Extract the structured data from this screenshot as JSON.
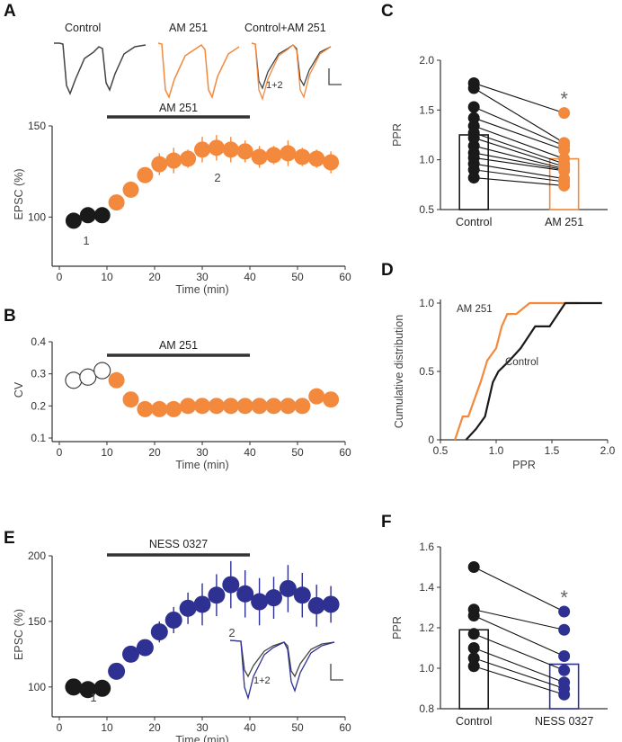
{
  "colors": {
    "black": "#1a1a1a",
    "orange": "#f3893d",
    "blue": "#2f3192",
    "gray": "#333333"
  },
  "panel_letters": {
    "a": "A",
    "b": "B",
    "c": "C",
    "d": "D",
    "e": "E",
    "f": "F"
  },
  "trace_labels": {
    "a_control": "Control",
    "a_drug": "AM 251",
    "a_overlay": "Control+AM 251",
    "overlay_tag": "1+2",
    "e_overlay_tag": "1+2"
  },
  "chart_data": [
    {
      "id": "A",
      "type": "scatter",
      "title": "",
      "xlabel": "Time (min)",
      "ylabel": "EPSC (%)",
      "xlim": [
        0,
        60
      ],
      "ylim": [
        75,
        150
      ],
      "xticks": [
        0,
        10,
        20,
        30,
        40,
        50,
        60
      ],
      "yticks": [
        100,
        150
      ],
      "bar_label": "AM 251",
      "bar_range": [
        10,
        40
      ],
      "point_labels": [
        "1",
        "2"
      ],
      "series": [
        {
          "name": "Control",
          "color": "#1a1a1a",
          "x": [
            3,
            6,
            9
          ],
          "y": [
            98,
            101,
            101
          ],
          "err": [
            0,
            0,
            0
          ]
        },
        {
          "name": "AM 251",
          "color": "#f3893d",
          "x": [
            12,
            15,
            18,
            21,
            24,
            27,
            30,
            33,
            36,
            39,
            42,
            45,
            48,
            51,
            54,
            57
          ],
          "y": [
            108,
            115,
            123,
            129,
            131,
            132,
            137,
            138,
            137,
            136,
            133,
            134,
            135,
            133,
            132,
            130
          ],
          "err": [
            2,
            3,
            3,
            6,
            7,
            5,
            7,
            7,
            7,
            6,
            6,
            5,
            7,
            5,
            5,
            6
          ]
        }
      ]
    },
    {
      "id": "B",
      "type": "scatter",
      "xlabel": "Time (min)",
      "ylabel": "CV",
      "xlim": [
        0,
        60
      ],
      "ylim": [
        0.1,
        0.4
      ],
      "xticks": [
        0,
        10,
        20,
        30,
        40,
        50,
        60
      ],
      "yticks": [
        0.1,
        0.2,
        0.3,
        0.4
      ],
      "bar_label": "AM 251",
      "bar_range": [
        10,
        40
      ],
      "series": [
        {
          "name": "Control",
          "color": "#1a1a1a",
          "hollow": true,
          "x": [
            3,
            6,
            9
          ],
          "y": [
            0.28,
            0.29,
            0.31
          ]
        },
        {
          "name": "AM 251",
          "color": "#f3893d",
          "x": [
            12,
            15,
            18,
            21,
            24,
            27,
            30,
            33,
            36,
            39,
            42,
            45,
            48,
            51,
            54,
            57
          ],
          "y": [
            0.28,
            0.22,
            0.19,
            0.19,
            0.19,
            0.2,
            0.2,
            0.2,
            0.2,
            0.2,
            0.2,
            0.2,
            0.2,
            0.2,
            0.23,
            0.22
          ]
        }
      ]
    },
    {
      "id": "C",
      "type": "bar",
      "xlabel": "",
      "ylabel": "PPR",
      "ylim": [
        0.5,
        2.0
      ],
      "yticks": [
        0.5,
        1.0,
        1.5,
        2.0
      ],
      "categories": [
        "Control",
        "AM 251"
      ],
      "values": [
        1.25,
        1.01
      ],
      "bar_colors": [
        "#1a1a1a",
        "#f3893d"
      ],
      "significance": "*",
      "pairs": [
        [
          1.77,
          1.47
        ],
        [
          1.72,
          1.17
        ],
        [
          1.53,
          1.14
        ],
        [
          1.42,
          1.1
        ],
        [
          1.34,
          1.01
        ],
        [
          1.27,
          0.96
        ],
        [
          1.22,
          0.93
        ],
        [
          1.14,
          0.91
        ],
        [
          1.07,
          0.9
        ],
        [
          1.02,
          0.89
        ],
        [
          0.96,
          0.81
        ],
        [
          0.9,
          0.78
        ],
        [
          0.82,
          0.74
        ]
      ]
    },
    {
      "id": "D",
      "type": "line",
      "xlabel": "PPR",
      "ylabel": "Cumulative distribution",
      "xlim": [
        0.5,
        2.0
      ],
      "ylim": [
        0,
        1.0
      ],
      "xticks": [
        0.5,
        1.0,
        1.5,
        2.0
      ],
      "yticks": [
        0,
        0.5,
        1.0
      ],
      "series": [
        {
          "name": "AM 251",
          "color": "#f3893d",
          "x": [
            0.63,
            0.7,
            0.75,
            0.82,
            0.86,
            0.92,
            1.0,
            1.05,
            1.1,
            1.18,
            1.3,
            1.42,
            1.55,
            1.7,
            1.75
          ],
          "y": [
            0,
            0.17,
            0.17,
            0.33,
            0.42,
            0.58,
            0.67,
            0.83,
            0.92,
            0.92,
            1.0,
            1.0,
            1.0,
            1.0,
            1.0
          ]
        },
        {
          "name": "Control",
          "color": "#1a1a1a",
          "x": [
            0.73,
            0.82,
            0.9,
            0.97,
            1.02,
            1.12,
            1.22,
            1.35,
            1.48,
            1.62,
            1.72,
            1.95
          ],
          "y": [
            0,
            0.08,
            0.17,
            0.42,
            0.5,
            0.58,
            0.67,
            0.83,
            0.83,
            1.0,
            1.0,
            1.0
          ]
        }
      ]
    },
    {
      "id": "E",
      "type": "scatter",
      "xlabel": "Time (min)",
      "ylabel": "EPSC (%)",
      "xlim": [
        0,
        60
      ],
      "ylim": [
        80,
        200
      ],
      "xticks": [
        0,
        10,
        20,
        30,
        40,
        50,
        60
      ],
      "yticks": [
        100,
        150,
        200
      ],
      "bar_label": "NESS 0327",
      "bar_range": [
        10,
        40
      ],
      "point_labels": [
        "1",
        "2"
      ],
      "series": [
        {
          "name": "Control",
          "color": "#1a1a1a",
          "x": [
            3,
            6,
            9
          ],
          "y": [
            100,
            98,
            99
          ],
          "err": [
            0,
            0,
            0
          ]
        },
        {
          "name": "NESS 0327",
          "color": "#2f3192",
          "x": [
            12,
            15,
            18,
            21,
            24,
            27,
            30,
            33,
            36,
            39,
            42,
            45,
            48,
            51,
            54,
            57
          ],
          "y": [
            112,
            125,
            130,
            142,
            151,
            160,
            163,
            170,
            178,
            171,
            165,
            168,
            175,
            170,
            162,
            163
          ],
          "err": [
            4,
            5,
            6,
            8,
            10,
            12,
            16,
            16,
            18,
            18,
            18,
            16,
            18,
            17,
            16,
            14
          ]
        }
      ]
    },
    {
      "id": "F",
      "type": "bar",
      "xlabel": "",
      "ylabel": "PPR",
      "ylim": [
        0.8,
        1.6
      ],
      "yticks": [
        0.8,
        1.0,
        1.2,
        1.4,
        1.6
      ],
      "categories": [
        "Control",
        "NESS 0327"
      ],
      "values": [
        1.19,
        1.02
      ],
      "bar_colors": [
        "#1a1a1a",
        "#2f3192"
      ],
      "significance": "*",
      "pairs": [
        [
          1.5,
          1.28
        ],
        [
          1.29,
          1.19
        ],
        [
          1.26,
          1.06
        ],
        [
          1.17,
          0.99
        ],
        [
          1.1,
          0.93
        ],
        [
          1.05,
          0.9
        ],
        [
          1.01,
          0.87
        ]
      ]
    }
  ]
}
